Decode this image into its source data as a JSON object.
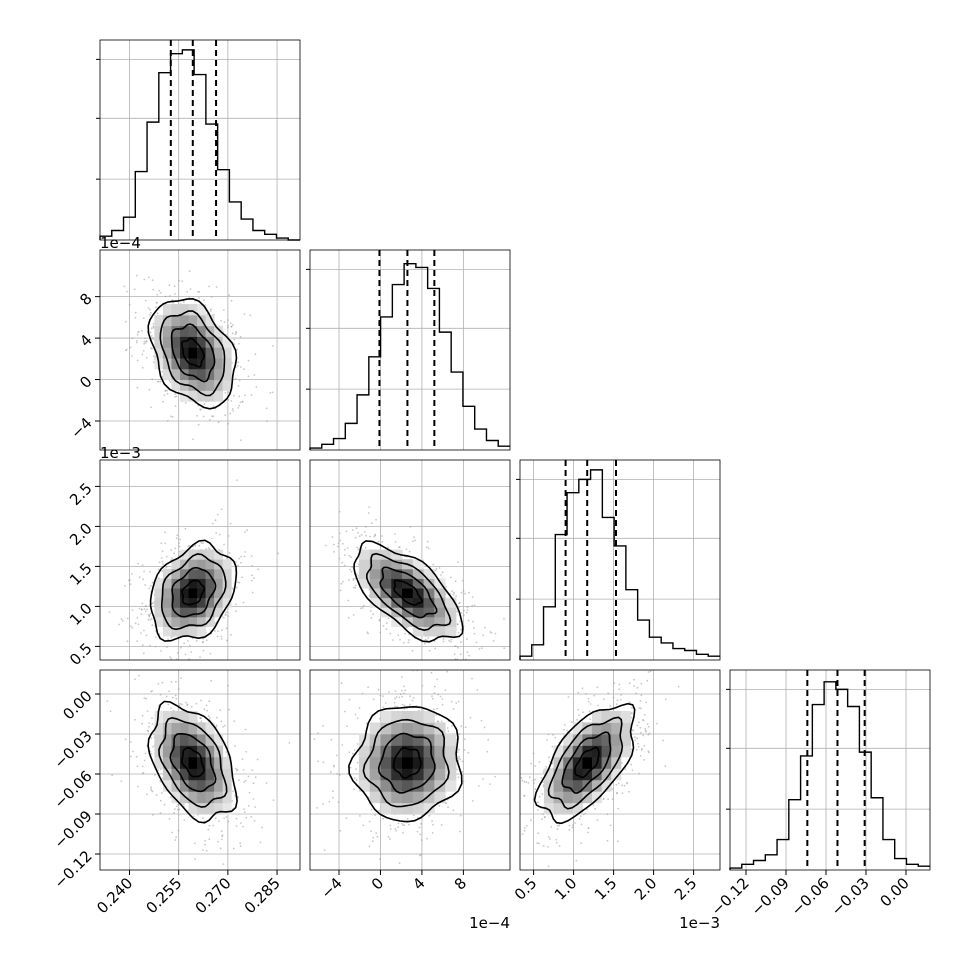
{
  "chart_data": {
    "type": "corner",
    "parameters": [
      {
        "offset_text": "",
        "ticks": [
          0.24,
          0.255,
          0.27,
          0.285
        ],
        "tick_labels": [
          "0.240",
          "0.255",
          "0.270",
          "0.285"
        ],
        "range": [
          0.231,
          0.292
        ],
        "quantiles": [
          0.2526,
          0.2593,
          0.2664
        ]
      },
      {
        "offset_text": "1e−4",
        "ticks": [
          -4,
          0,
          4,
          8
        ],
        "tick_labels": [
          "−4",
          "0",
          "4",
          "8"
        ],
        "range": [
          -6.8,
          12.5
        ],
        "quantiles": [
          -0.1,
          2.6,
          5.2
        ]
      },
      {
        "offset_text": "1e−3",
        "ticks": [
          0.5,
          1.0,
          1.5,
          2.0,
          2.5
        ],
        "tick_labels": [
          "0.5",
          "1.0",
          "1.5",
          "2.0",
          "2.5"
        ],
        "range": [
          0.33,
          2.83
        ],
        "quantiles": [
          0.9,
          1.17,
          1.53
        ]
      },
      {
        "offset_text": "",
        "ticks": [
          -0.12,
          -0.09,
          -0.06,
          -0.03,
          0.0
        ],
        "tick_labels": [
          "−0.12",
          "−0.09",
          "−0.06",
          "−0.03",
          "0.00"
        ],
        "range": [
          -0.132,
          0.018
        ],
        "quantiles": [
          -0.074,
          -0.0514,
          -0.031
        ]
      }
    ],
    "histograms": [
      [
        0.02,
        0.05,
        0.12,
        0.36,
        0.62,
        0.88,
        0.98,
        1.0,
        0.87,
        0.61,
        0.37,
        0.2,
        0.11,
        0.05,
        0.03,
        0.01,
        0.0
      ],
      [
        0.01,
        0.03,
        0.06,
        0.14,
        0.29,
        0.49,
        0.7,
        0.87,
        0.98,
        0.96,
        0.85,
        0.62,
        0.41,
        0.23,
        0.11,
        0.05,
        0.02
      ],
      [
        0.02,
        0.08,
        0.28,
        0.66,
        0.88,
        0.95,
        1.0,
        0.75,
        0.6,
        0.37,
        0.21,
        0.12,
        0.09,
        0.06,
        0.05,
        0.03,
        0.02
      ],
      [
        0.01,
        0.03,
        0.05,
        0.08,
        0.16,
        0.37,
        0.6,
        0.87,
        0.99,
        0.95,
        0.86,
        0.62,
        0.38,
        0.16,
        0.06,
        0.03,
        0.02
      ]
    ],
    "pairs": [
      {
        "x": 0,
        "y": 1,
        "center": [
          0.2593,
          2.6
        ],
        "sd": [
          0.0065,
          2.6
        ],
        "corr": -0.35
      },
      {
        "x": 0,
        "y": 2,
        "center": [
          0.2593,
          1.17
        ],
        "sd": [
          0.0065,
          0.3
        ],
        "corr": 0.28
      },
      {
        "x": 1,
        "y": 2,
        "center": [
          2.6,
          1.17
        ],
        "sd": [
          2.6,
          0.3
        ],
        "corr": -0.62
      },
      {
        "x": 0,
        "y": 3,
        "center": [
          0.2593,
          -0.0514
        ],
        "sd": [
          0.0065,
          0.0215
        ],
        "corr": -0.4
      },
      {
        "x": 1,
        "y": 3,
        "center": [
          2.6,
          -0.0514
        ],
        "sd": [
          2.6,
          0.0215
        ],
        "corr": 0.05
      },
      {
        "x": 2,
        "y": 3,
        "center": [
          1.17,
          -0.0514
        ],
        "sd": [
          0.3,
          0.0215
        ],
        "corr": 0.6
      }
    ],
    "contour_levels": [
      0.5,
      1.0,
      1.5,
      2.0
    ],
    "grid": true,
    "legend": "none"
  }
}
